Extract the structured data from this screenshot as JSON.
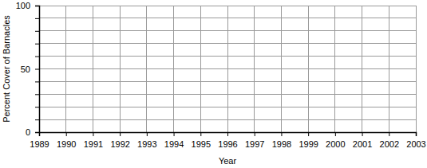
{
  "chart_data": {
    "type": "line",
    "x_label": "Year",
    "y_label": "Percent Cover of Barnacles",
    "series": [],
    "xlim": [
      1989,
      2003
    ],
    "xticks": [
      1989,
      1990,
      1991,
      1992,
      1993,
      1994,
      1995,
      1996,
      1997,
      1998,
      1999,
      2000,
      2001,
      2002,
      2003
    ],
    "ylim": [
      0,
      100
    ],
    "yticks": [
      0,
      {
        "value": 10,
        "label": null
      },
      {
        "value": 20,
        "label": null
      },
      {
        "value": 30,
        "label": null
      },
      {
        "value": 40,
        "label": null
      },
      50,
      {
        "value": 60,
        "label": null
      },
      {
        "value": 70,
        "label": null
      },
      {
        "value": 80,
        "label": null
      },
      {
        "value": 90,
        "label": null
      },
      100
    ],
    "grid": true
  }
}
